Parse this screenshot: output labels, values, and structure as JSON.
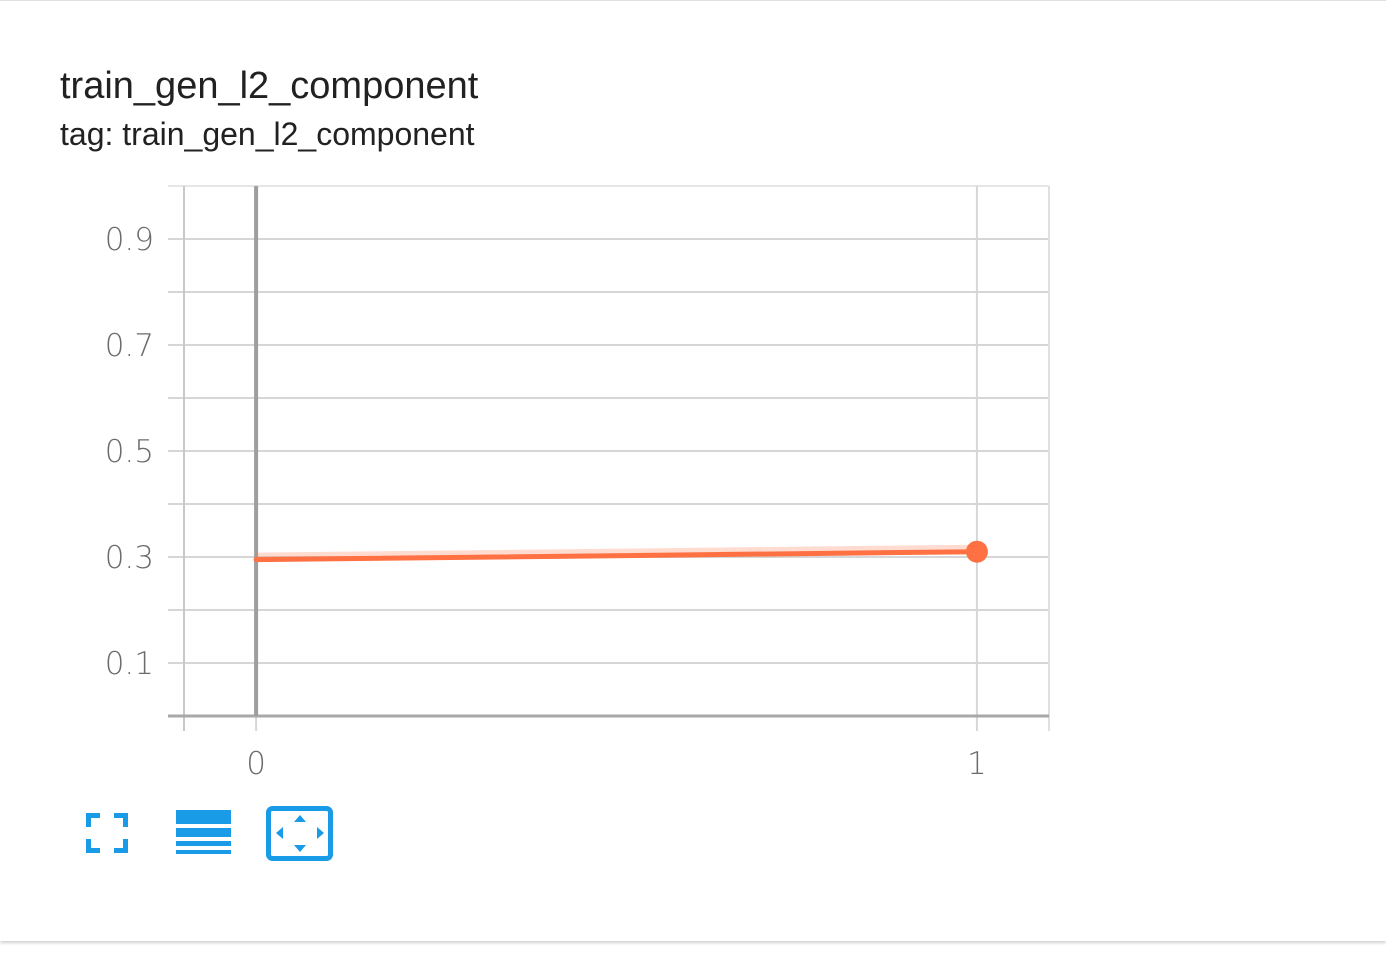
{
  "card": {
    "title": "train_gen_l2_component",
    "subtitle": "tag: train_gen_l2_component"
  },
  "chart_data": {
    "type": "line",
    "xlim": [
      -0.1,
      1.1
    ],
    "ylim": [
      -0.0,
      1.0
    ],
    "x_ticks": [
      "0",
      "1"
    ],
    "y_ticks": [
      "0.1",
      "0.3",
      "0.5",
      "0.7",
      "0.9"
    ],
    "grid": true,
    "series": [
      {
        "x": [
          0,
          1
        ],
        "y": [
          0.295,
          0.31
        ],
        "color": "#ff7043"
      }
    ]
  },
  "toolbar": {
    "fullscreen": "fullscreen-icon",
    "log_scale": "log-scale-icon",
    "fit_domain": "fit-domain-icon"
  },
  "colors": {
    "accent": "#1a9be8",
    "series": "#ff7043",
    "grid": "#d6d6d6",
    "axis": "#9e9e9e"
  }
}
